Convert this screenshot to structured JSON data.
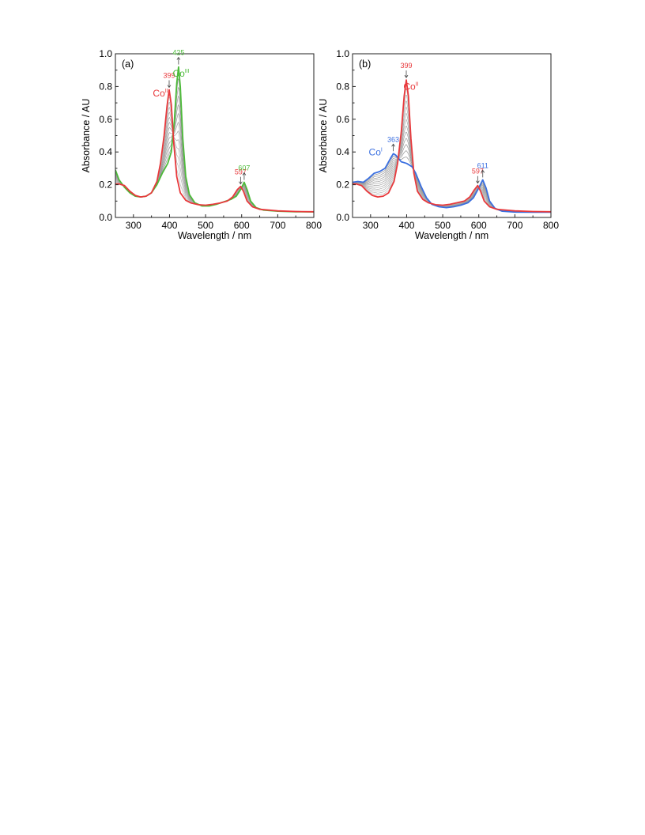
{
  "chart_data": [
    {
      "type": "line",
      "panel_label": "(a)",
      "xlabel": "Wavelength / nm",
      "ylabel": "Absorbance / AU",
      "xlim": [
        250,
        800
      ],
      "ylim": [
        0.0,
        1.0
      ],
      "xticks": [
        300,
        400,
        500,
        600,
        700,
        800
      ],
      "yticks": [
        "0.0",
        "0.2",
        "0.4",
        "0.6",
        "0.8",
        "1.0"
      ],
      "grid": false,
      "intermediate_traces": 12,
      "series": [
        {
          "color": "#e8393c",
          "points": [
            [
              250,
              0.205
            ],
            [
              260,
              0.205
            ],
            [
              275,
              0.195
            ],
            [
              290,
              0.16
            ],
            [
              305,
              0.135
            ],
            [
              320,
              0.125
            ],
            [
              335,
              0.13
            ],
            [
              350,
              0.15
            ],
            [
              365,
              0.22
            ],
            [
              375,
              0.33
            ],
            [
              385,
              0.5
            ],
            [
              393,
              0.68
            ],
            [
              399,
              0.78
            ],
            [
              405,
              0.69
            ],
            [
              412,
              0.45
            ],
            [
              420,
              0.25
            ],
            [
              430,
              0.15
            ],
            [
              445,
              0.105
            ],
            [
              460,
              0.088
            ],
            [
              480,
              0.078
            ],
            [
              500,
              0.075
            ],
            [
              520,
              0.08
            ],
            [
              540,
              0.088
            ],
            [
              560,
              0.1
            ],
            [
              575,
              0.125
            ],
            [
              588,
              0.17
            ],
            [
              597,
              0.19
            ],
            [
              605,
              0.16
            ],
            [
              615,
              0.1
            ],
            [
              630,
              0.065
            ],
            [
              650,
              0.05
            ],
            [
              700,
              0.04
            ],
            [
              750,
              0.036
            ],
            [
              800,
              0.035
            ]
          ]
        },
        {
          "color": "#4dbb3a",
          "points": [
            [
              250,
              0.29
            ],
            [
              260,
              0.23
            ],
            [
              275,
              0.185
            ],
            [
              290,
              0.15
            ],
            [
              305,
              0.13
            ],
            [
              320,
              0.125
            ],
            [
              335,
              0.13
            ],
            [
              350,
              0.15
            ],
            [
              365,
              0.2
            ],
            [
              380,
              0.27
            ],
            [
              395,
              0.33
            ],
            [
              405,
              0.4
            ],
            [
              413,
              0.58
            ],
            [
              420,
              0.82
            ],
            [
              425,
              0.92
            ],
            [
              430,
              0.8
            ],
            [
              437,
              0.48
            ],
            [
              445,
              0.25
            ],
            [
              455,
              0.14
            ],
            [
              470,
              0.09
            ],
            [
              490,
              0.07
            ],
            [
              510,
              0.07
            ],
            [
              530,
              0.08
            ],
            [
              550,
              0.095
            ],
            [
              570,
              0.11
            ],
            [
              585,
              0.13
            ],
            [
              597,
              0.17
            ],
            [
              607,
              0.215
            ],
            [
              615,
              0.17
            ],
            [
              625,
              0.1
            ],
            [
              640,
              0.06
            ],
            [
              660,
              0.045
            ],
            [
              700,
              0.038
            ],
            [
              750,
              0.035
            ],
            [
              800,
              0.034
            ]
          ]
        }
      ],
      "annotations": [
        {
          "text": "399",
          "color": "#e8393c",
          "x": 399,
          "y": 0.78,
          "dir": "down"
        },
        {
          "text": "425",
          "color": "#4dbb3a",
          "x": 425,
          "y": 0.92,
          "dir": "up"
        },
        {
          "text": "597",
          "color": "#e8393c",
          "x": 597,
          "y": 0.19,
          "dir": "down"
        },
        {
          "text": "607",
          "color": "#4dbb3a",
          "x": 607,
          "y": 0.215,
          "dir": "up"
        }
      ],
      "labels": [
        {
          "base": "Co",
          "sup": "II",
          "color": "#e8393c",
          "x": 375,
          "y": 0.74
        },
        {
          "base": "Co",
          "sup": "III",
          "color": "#4dbb3a",
          "x": 432,
          "y": 0.86
        }
      ]
    },
    {
      "type": "line",
      "panel_label": "(b)",
      "xlabel": "Wavelength / nm",
      "ylabel": "Absorbance / AU",
      "xlim": [
        250,
        800
      ],
      "ylim": [
        0.0,
        1.0
      ],
      "xticks": [
        300,
        400,
        500,
        600,
        700,
        800
      ],
      "yticks": [
        "0.0",
        "0.2",
        "0.4",
        "0.6",
        "0.8",
        "1.0"
      ],
      "grid": false,
      "intermediate_traces": 12,
      "series": [
        {
          "color": "#e8393c",
          "points": [
            [
              250,
              0.205
            ],
            [
              260,
              0.205
            ],
            [
              275,
              0.195
            ],
            [
              290,
              0.16
            ],
            [
              305,
              0.135
            ],
            [
              320,
              0.125
            ],
            [
              335,
              0.13
            ],
            [
              350,
              0.15
            ],
            [
              365,
              0.22
            ],
            [
              375,
              0.33
            ],
            [
              385,
              0.52
            ],
            [
              393,
              0.74
            ],
            [
              399,
              0.84
            ],
            [
              405,
              0.74
            ],
            [
              412,
              0.48
            ],
            [
              420,
              0.27
            ],
            [
              430,
              0.16
            ],
            [
              445,
              0.11
            ],
            [
              460,
              0.09
            ],
            [
              480,
              0.078
            ],
            [
              500,
              0.075
            ],
            [
              520,
              0.08
            ],
            [
              540,
              0.09
            ],
            [
              560,
              0.1
            ],
            [
              575,
              0.125
            ],
            [
              588,
              0.17
            ],
            [
              597,
              0.195
            ],
            [
              605,
              0.16
            ],
            [
              615,
              0.1
            ],
            [
              630,
              0.065
            ],
            [
              650,
              0.05
            ],
            [
              700,
              0.04
            ],
            [
              750,
              0.036
            ],
            [
              800,
              0.035
            ]
          ]
        },
        {
          "color": "#3a6fe0",
          "points": [
            [
              250,
              0.215
            ],
            [
              265,
              0.22
            ],
            [
              280,
              0.215
            ],
            [
              295,
              0.24
            ],
            [
              310,
              0.27
            ],
            [
              325,
              0.28
            ],
            [
              340,
              0.3
            ],
            [
              355,
              0.36
            ],
            [
              363,
              0.39
            ],
            [
              370,
              0.38
            ],
            [
              385,
              0.34
            ],
            [
              400,
              0.33
            ],
            [
              415,
              0.31
            ],
            [
              425,
              0.27
            ],
            [
              440,
              0.19
            ],
            [
              455,
              0.12
            ],
            [
              470,
              0.08
            ],
            [
              490,
              0.065
            ],
            [
              510,
              0.06
            ],
            [
              530,
              0.065
            ],
            [
              550,
              0.075
            ],
            [
              570,
              0.09
            ],
            [
              585,
              0.12
            ],
            [
              600,
              0.18
            ],
            [
              611,
              0.23
            ],
            [
              620,
              0.18
            ],
            [
              630,
              0.1
            ],
            [
              645,
              0.055
            ],
            [
              665,
              0.038
            ],
            [
              700,
              0.033
            ],
            [
              750,
              0.032
            ],
            [
              800,
              0.032
            ]
          ]
        }
      ],
      "annotations": [
        {
          "text": "399",
          "color": "#e8393c",
          "x": 399,
          "y": 0.84,
          "dir": "down"
        },
        {
          "text": "363",
          "color": "#3a6fe0",
          "x": 363,
          "y": 0.39,
          "dir": "up"
        },
        {
          "text": "597",
          "color": "#e8393c",
          "x": 597,
          "y": 0.195,
          "dir": "down"
        },
        {
          "text": "611",
          "color": "#3a6fe0",
          "x": 611,
          "y": 0.23,
          "dir": "up"
        }
      ],
      "labels": [
        {
          "base": "Co",
          "sup": "II",
          "color": "#e8393c",
          "x": 412,
          "y": 0.78
        },
        {
          "base": "Co",
          "sup": "I",
          "color": "#3a6fe0",
          "x": 314,
          "y": 0.38
        }
      ]
    }
  ]
}
